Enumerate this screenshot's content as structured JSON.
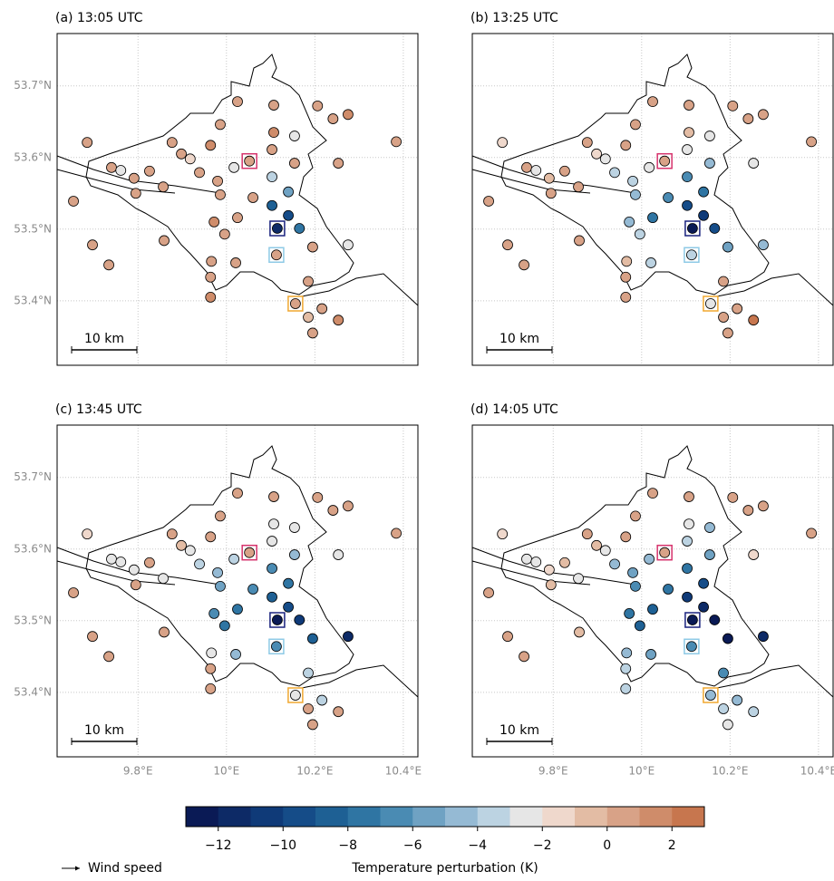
{
  "chart_data": [
    {
      "type": "scatter",
      "title": "(a) 13:05 UTC",
      "scale_label": "10 km",
      "x": [
        9.685,
        9.654,
        9.697,
        9.734,
        9.74,
        9.761,
        9.791,
        9.826,
        9.857,
        9.795,
        9.859,
        9.877,
        9.898,
        9.918,
        9.939,
        9.964,
        9.986,
        10.025,
        10.052,
        10.017,
        9.98,
        9.986,
        9.972,
        9.996,
        10.021,
        9.966,
        9.964,
        9.964,
        10.107,
        10.107,
        10.154,
        10.103,
        10.154,
        10.103,
        10.14,
        10.103,
        10.14,
        10.165,
        10.113,
        10.185,
        10.156,
        10.185,
        10.195,
        10.216,
        10.253,
        10.206,
        10.241,
        10.275,
        10.253,
        10.275,
        10.195,
        10.384,
        10.025,
        10.06,
        10.115
      ],
      "y": [
        53.621,
        53.539,
        53.478,
        53.45,
        53.586,
        53.582,
        53.571,
        53.581,
        53.559,
        53.55,
        53.484,
        53.621,
        53.605,
        53.598,
        53.579,
        53.617,
        53.646,
        53.678,
        53.595,
        53.586,
        53.567,
        53.548,
        53.51,
        53.493,
        53.453,
        53.455,
        53.433,
        53.405,
        53.673,
        53.635,
        53.63,
        53.611,
        53.592,
        53.573,
        53.552,
        53.533,
        53.519,
        53.501,
        53.464,
        53.427,
        53.396,
        53.377,
        53.355,
        53.389,
        53.373,
        53.672,
        53.654,
        53.66,
        53.592,
        53.478,
        53.475,
        53.622,
        53.516,
        53.544,
        53.501
      ],
      "values": [
        0.5,
        0.5,
        0.5,
        0.5,
        0.5,
        -2.5,
        0.5,
        0.5,
        0.5,
        0.5,
        0.5,
        0.5,
        0.5,
        -1.5,
        0.5,
        1.5,
        0.5,
        0.5,
        0.5,
        -2.5,
        0.5,
        0.5,
        1.5,
        0.5,
        0.5,
        0.5,
        0.5,
        1.5,
        0.5,
        1.5,
        -2.5,
        0.5,
        0.5,
        -3.5,
        -5.5,
        -8.5,
        -9.5,
        -7.5,
        0.5,
        0.5,
        0.5,
        -0.5,
        0.5,
        0.5,
        1.5,
        0.5,
        0.5,
        1.5,
        0.5,
        -2.5,
        0.5,
        0.5,
        0.5,
        0.5,
        -11.5
      ],
      "xlim": [
        9.617,
        10.433
      ],
      "ylim": [
        53.31,
        53.773
      ],
      "xticks": [
        {
          "value": 9.8,
          "label": "9.8°E"
        },
        {
          "value": 10,
          "label": "10°E"
        },
        {
          "value": 10.2,
          "label": "10.2°E"
        },
        {
          "value": 10.4,
          "label": "10.4°E"
        }
      ],
      "yticks": [
        {
          "value": 53.4,
          "label": "53.4°N"
        },
        {
          "value": 53.5,
          "label": "53.5°N"
        },
        {
          "value": 53.6,
          "label": "53.6°N"
        },
        {
          "value": 53.7,
          "label": "53.7°N"
        }
      ],
      "grid": true
    },
    {
      "type": "scatter",
      "title": "(b) 13:25 UTC",
      "scale_label": "10 km",
      "x": [
        9.685,
        9.654,
        9.697,
        9.734,
        9.74,
        9.761,
        9.791,
        9.826,
        9.857,
        9.795,
        9.859,
        9.877,
        9.898,
        9.918,
        9.939,
        9.964,
        9.986,
        10.025,
        10.052,
        10.017,
        9.98,
        9.986,
        9.972,
        9.996,
        10.021,
        9.966,
        9.964,
        9.964,
        10.107,
        10.107,
        10.154,
        10.103,
        10.154,
        10.103,
        10.14,
        10.103,
        10.14,
        10.165,
        10.113,
        10.185,
        10.156,
        10.185,
        10.195,
        10.216,
        10.253,
        10.206,
        10.241,
        10.275,
        10.253,
        10.275,
        10.195,
        10.384,
        10.025,
        10.06,
        10.115
      ],
      "y": [
        53.621,
        53.539,
        53.478,
        53.45,
        53.586,
        53.582,
        53.571,
        53.581,
        53.559,
        53.55,
        53.484,
        53.621,
        53.605,
        53.598,
        53.579,
        53.617,
        53.646,
        53.678,
        53.595,
        53.586,
        53.567,
        53.548,
        53.51,
        53.493,
        53.453,
        53.455,
        53.433,
        53.405,
        53.673,
        53.635,
        53.63,
        53.611,
        53.592,
        53.573,
        53.552,
        53.533,
        53.519,
        53.501,
        53.464,
        53.427,
        53.396,
        53.377,
        53.355,
        53.389,
        53.373,
        53.672,
        53.654,
        53.66,
        53.592,
        53.478,
        53.475,
        53.622,
        53.516,
        53.544,
        53.501
      ],
      "values": [
        -1.5,
        0.5,
        0.5,
        0.5,
        0.5,
        -2.5,
        -0.5,
        0.5,
        0.5,
        0.5,
        0.5,
        0.5,
        -1.5,
        -2.5,
        -3.5,
        0.5,
        0.5,
        0.5,
        0.5,
        -2.5,
        -3.5,
        -4.5,
        -4.5,
        -3.5,
        -3.5,
        -0.5,
        0.5,
        0.5,
        0.5,
        -0.5,
        -2.5,
        -2.5,
        -4.5,
        -6.5,
        -7.5,
        -9.5,
        -10.5,
        -9.5,
        -3.5,
        0.5,
        -2.5,
        0.5,
        0.5,
        0.5,
        2.5,
        0.5,
        0.5,
        0.5,
        -2.5,
        -4.5,
        -5.5,
        0.5,
        -7.5,
        -6.5,
        -12.5
      ],
      "xlim": [
        9.617,
        10.433
      ],
      "ylim": [
        53.31,
        53.773
      ],
      "xticks": [
        {
          "value": 9.8,
          "label": "9.8°E"
        },
        {
          "value": 10,
          "label": "10°E"
        },
        {
          "value": 10.2,
          "label": "10.2°E"
        },
        {
          "value": 10.4,
          "label": "10.4°E"
        }
      ],
      "yticks": [
        {
          "value": 53.4,
          "label": "53.4°N"
        },
        {
          "value": 53.5,
          "label": "53.5°N"
        },
        {
          "value": 53.6,
          "label": "53.6°N"
        },
        {
          "value": 53.7,
          "label": "53.7°N"
        }
      ],
      "grid": true
    },
    {
      "type": "scatter",
      "title": "(c) 13:45 UTC",
      "scale_label": "10 km",
      "x": [
        9.685,
        9.654,
        9.697,
        9.734,
        9.74,
        9.761,
        9.791,
        9.826,
        9.857,
        9.795,
        9.859,
        9.877,
        9.898,
        9.918,
        9.939,
        9.964,
        9.986,
        10.025,
        10.052,
        10.017,
        9.98,
        9.986,
        9.972,
        9.996,
        10.021,
        9.966,
        9.964,
        9.964,
        10.107,
        10.107,
        10.154,
        10.103,
        10.154,
        10.103,
        10.14,
        10.103,
        10.14,
        10.165,
        10.113,
        10.185,
        10.156,
        10.185,
        10.195,
        10.216,
        10.253,
        10.206,
        10.241,
        10.275,
        10.253,
        10.275,
        10.195,
        10.384,
        10.025,
        10.06,
        10.115
      ],
      "y": [
        53.621,
        53.539,
        53.478,
        53.45,
        53.586,
        53.582,
        53.571,
        53.581,
        53.559,
        53.55,
        53.484,
        53.621,
        53.605,
        53.598,
        53.579,
        53.617,
        53.646,
        53.678,
        53.595,
        53.586,
        53.567,
        53.548,
        53.51,
        53.493,
        53.453,
        53.455,
        53.433,
        53.405,
        53.673,
        53.635,
        53.63,
        53.611,
        53.592,
        53.573,
        53.552,
        53.533,
        53.519,
        53.501,
        53.464,
        53.427,
        53.396,
        53.377,
        53.355,
        53.389,
        53.373,
        53.672,
        53.654,
        53.66,
        53.592,
        53.478,
        53.475,
        53.622,
        53.516,
        53.544,
        53.501
      ],
      "values": [
        -1.5,
        0.5,
        0.5,
        0.5,
        -2.5,
        -2.5,
        -2.5,
        0.5,
        -2.5,
        0.5,
        0.5,
        0.5,
        -0.5,
        -2.5,
        -3.5,
        0.5,
        0.5,
        0.5,
        0.5,
        -3.5,
        -4.5,
        -5.5,
        -6.5,
        -7.5,
        -4.5,
        -2.5,
        0.5,
        0.5,
        0.5,
        -2.5,
        -2.5,
        -2.5,
        -4.5,
        -6.5,
        -7.5,
        -8.5,
        -9.5,
        -10.5,
        -6.5,
        -3.5,
        -2.5,
        0.5,
        0.5,
        -3.5,
        0.5,
        0.5,
        0.5,
        0.5,
        -2.5,
        -11.5,
        -8.5,
        0.5,
        -7.5,
        -6.5,
        -12.5
      ],
      "xlim": [
        9.617,
        10.433
      ],
      "ylim": [
        53.31,
        53.773
      ],
      "xticks": [
        {
          "value": 9.8,
          "label": "9.8°E"
        },
        {
          "value": 10,
          "label": "10°E"
        },
        {
          "value": 10.2,
          "label": "10.2°E"
        },
        {
          "value": 10.4,
          "label": "10.4°E"
        }
      ],
      "yticks": [
        {
          "value": 53.4,
          "label": "53.4°N"
        },
        {
          "value": 53.5,
          "label": "53.5°N"
        },
        {
          "value": 53.6,
          "label": "53.6°N"
        },
        {
          "value": 53.7,
          "label": "53.7°N"
        }
      ],
      "grid": true
    },
    {
      "type": "scatter",
      "title": "(d) 14:05 UTC",
      "scale_label": "10 km",
      "x": [
        9.685,
        9.654,
        9.697,
        9.734,
        9.74,
        9.761,
        9.791,
        9.826,
        9.857,
        9.795,
        9.859,
        9.877,
        9.898,
        9.918,
        9.939,
        9.964,
        9.986,
        10.025,
        10.052,
        10.017,
        9.98,
        9.986,
        9.972,
        9.996,
        10.021,
        9.966,
        9.964,
        9.964,
        10.107,
        10.107,
        10.154,
        10.103,
        10.154,
        10.103,
        10.14,
        10.103,
        10.14,
        10.165,
        10.113,
        10.185,
        10.156,
        10.185,
        10.195,
        10.216,
        10.253,
        10.206,
        10.241,
        10.275,
        10.253,
        10.275,
        10.195,
        10.384,
        10.025,
        10.06,
        10.115
      ],
      "y": [
        53.621,
        53.539,
        53.478,
        53.45,
        53.586,
        53.582,
        53.571,
        53.581,
        53.559,
        53.55,
        53.484,
        53.621,
        53.605,
        53.598,
        53.579,
        53.617,
        53.646,
        53.678,
        53.595,
        53.586,
        53.567,
        53.548,
        53.51,
        53.493,
        53.453,
        53.455,
        53.433,
        53.405,
        53.673,
        53.635,
        53.63,
        53.611,
        53.592,
        53.573,
        53.552,
        53.533,
        53.519,
        53.501,
        53.464,
        53.427,
        53.396,
        53.377,
        53.355,
        53.389,
        53.373,
        53.672,
        53.654,
        53.66,
        53.592,
        53.478,
        53.475,
        53.622,
        53.516,
        53.544,
        53.501
      ],
      "values": [
        -1.5,
        0.5,
        0.5,
        0.5,
        -2.5,
        -2.5,
        -1.5,
        -0.5,
        -2.5,
        -0.5,
        -0.5,
        0.5,
        -0.5,
        -2.5,
        -4.5,
        0.5,
        0.5,
        0.5,
        0.5,
        -4.5,
        -5.5,
        -6.5,
        -7.5,
        -8.5,
        -5.5,
        -4.5,
        -3.5,
        -3.5,
        0.5,
        -2.5,
        -4.5,
        -3.5,
        -5.5,
        -7.5,
        -9.5,
        -10.5,
        -11.5,
        -12.5,
        -6.5,
        -6.5,
        -4.5,
        -3.5,
        -2.5,
        -4.5,
        -3.5,
        0.5,
        0.5,
        0.5,
        -1.5,
        -11.5,
        -12.5,
        0.5,
        -8.5,
        -7.5,
        -12.5
      ],
      "xlim": [
        9.617,
        10.433
      ],
      "ylim": [
        53.31,
        53.773
      ],
      "xticks": [
        {
          "value": 9.8,
          "label": "9.8°E"
        },
        {
          "value": 10,
          "label": "10°E"
        },
        {
          "value": 10.2,
          "label": "10.2°E"
        },
        {
          "value": 10.4,
          "label": "10.4°E"
        }
      ],
      "yticks": [
        {
          "value": 53.4,
          "label": "53.4°N"
        },
        {
          "value": 53.5,
          "label": "53.5°N"
        },
        {
          "value": 53.6,
          "label": "53.6°N"
        },
        {
          "value": 53.7,
          "label": "53.7°N"
        }
      ],
      "grid": true
    }
  ],
  "colorbar": {
    "label": "Temperature perturbation (K)",
    "lim": [
      -13,
      3
    ],
    "colors": [
      "#0a1a55",
      "#0d2a66",
      "#0f3a78",
      "#154c88",
      "#1e6094",
      "#2f75a3",
      "#4a8bb3",
      "#6fa2c3",
      "#95bad4",
      "#bcd3e2",
      "#e6e6e6",
      "#efd8cc",
      "#e3bca4",
      "#d8a287",
      "#cf8c6a",
      "#c7764e"
    ],
    "ticks": [
      {
        "value": -12,
        "label": "−12"
      },
      {
        "value": -10,
        "label": "−10"
      },
      {
        "value": -8,
        "label": "−8"
      },
      {
        "value": -6,
        "label": "−6"
      },
      {
        "value": -4,
        "label": "−4"
      },
      {
        "value": -2,
        "label": "−2"
      },
      0,
      2
    ]
  },
  "wind_legend": "Wind speed"
}
